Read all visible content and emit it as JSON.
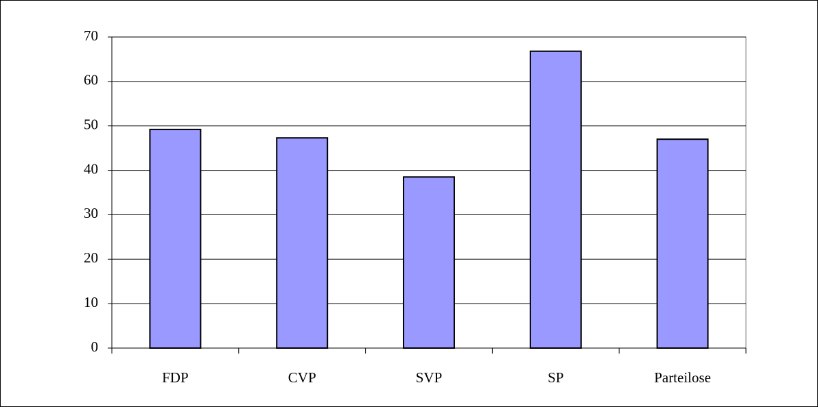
{
  "chart_data": {
    "type": "bar",
    "categories": [
      "FDP",
      "CVP",
      "SVP",
      "SP",
      "Parteilose"
    ],
    "values": [
      49.2,
      47.3,
      38.5,
      66.8,
      47.0
    ],
    "color": "#9999ff",
    "ylim": [
      0,
      70
    ],
    "yticks": [
      0,
      10,
      20,
      30,
      40,
      50,
      60,
      70
    ],
    "grid": true
  }
}
